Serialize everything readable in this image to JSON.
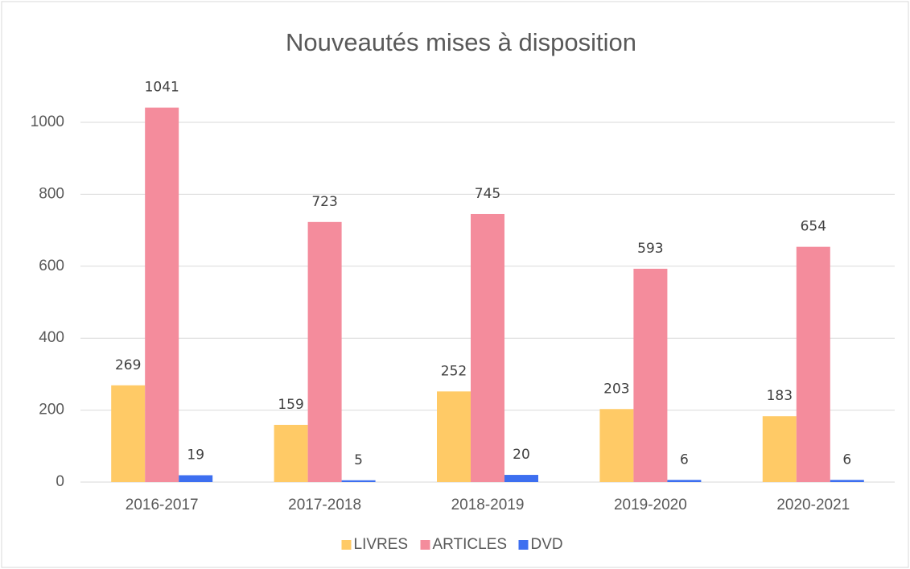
{
  "chart_data": {
    "type": "bar",
    "title": "Nouveautés mises à disposition",
    "categories": [
      "2016-2017",
      "2017-2018",
      "2018-2019",
      "2019-2020",
      "2020-2021"
    ],
    "series": [
      {
        "name": "LIVRES",
        "color": "#ffca66",
        "values": [
          269,
          159,
          252,
          203,
          183
        ]
      },
      {
        "name": "ARTICLES",
        "color": "#f48c9c",
        "values": [
          1041,
          723,
          745,
          593,
          654
        ]
      },
      {
        "name": "DVD",
        "color": "#3d6ff0",
        "values": [
          19,
          5,
          20,
          6,
          6
        ]
      }
    ],
    "ylim": [
      0,
      1000
    ],
    "yticks": [
      0,
      200,
      400,
      600,
      800,
      1000
    ],
    "grid": true,
    "legend": "bottom"
  }
}
